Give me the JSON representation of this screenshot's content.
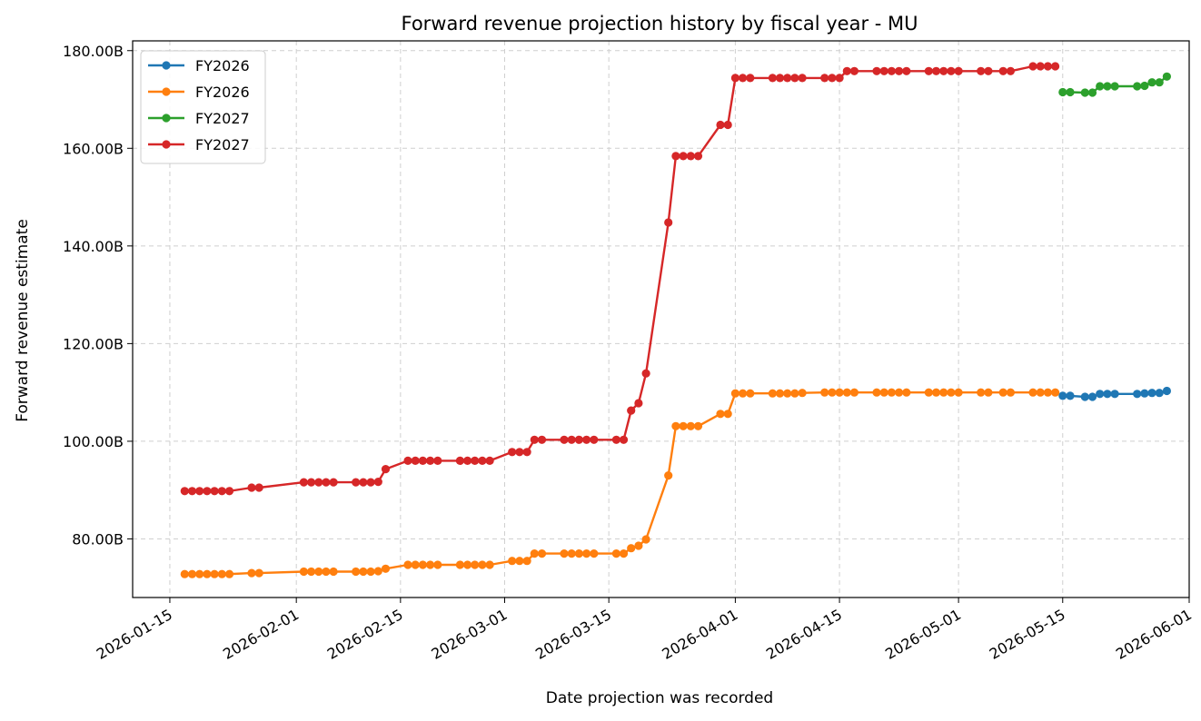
{
  "chart_data": {
    "type": "line",
    "title": "Forward revenue projection history by fiscal year - MU",
    "xlabel": "Date projection was recorded",
    "ylabel": "Forward revenue estimate",
    "xlim": [
      "2026-01-10",
      "2026-06-01"
    ],
    "ylim": [
      68.0,
      182.0
    ],
    "grid": true,
    "legend": "top-left",
    "x_ticks": [
      "2026-01-15",
      "2026-02-01",
      "2026-02-15",
      "2026-03-01",
      "2026-03-15",
      "2026-04-01",
      "2026-04-15",
      "2026-05-01",
      "2026-05-15",
      "2026-06-01"
    ],
    "y_ticks": [
      80,
      100,
      120,
      140,
      160,
      180
    ],
    "y_tick_labels": [
      "80.00B",
      "100.00B",
      "120.00B",
      "140.00B",
      "160.00B",
      "180.00B"
    ],
    "series": [
      {
        "name": "FY2026",
        "color": "#1f77b4",
        "x": [
          "2026-05-15",
          "2026-05-16",
          "2026-05-18",
          "2026-05-19",
          "2026-05-20",
          "2026-05-21",
          "2026-05-22",
          "2026-05-25",
          "2026-05-26",
          "2026-05-27",
          "2026-05-28",
          "2026-05-29"
        ],
        "y": [
          109.3,
          109.3,
          109.1,
          109.1,
          109.7,
          109.7,
          109.7,
          109.7,
          109.8,
          109.9,
          109.9,
          110.3
        ]
      },
      {
        "name": "FY2026",
        "color": "#ff7f0e",
        "x": [
          "2026-01-17",
          "2026-01-18",
          "2026-01-19",
          "2026-01-20",
          "2026-01-21",
          "2026-01-22",
          "2026-01-23",
          "2026-01-26",
          "2026-01-27",
          "2026-02-02",
          "2026-02-03",
          "2026-02-04",
          "2026-02-05",
          "2026-02-06",
          "2026-02-09",
          "2026-02-10",
          "2026-02-11",
          "2026-02-12",
          "2026-02-13",
          "2026-02-16",
          "2026-02-17",
          "2026-02-18",
          "2026-02-19",
          "2026-02-20",
          "2026-02-23",
          "2026-02-24",
          "2026-02-25",
          "2026-02-26",
          "2026-02-27",
          "2026-03-02",
          "2026-03-03",
          "2026-03-04",
          "2026-03-05",
          "2026-03-06",
          "2026-03-09",
          "2026-03-10",
          "2026-03-11",
          "2026-03-12",
          "2026-03-13",
          "2026-03-16",
          "2026-03-17",
          "2026-03-18",
          "2026-03-19",
          "2026-03-20",
          "2026-03-23",
          "2026-03-24",
          "2026-03-25",
          "2026-03-26",
          "2026-03-27",
          "2026-03-30",
          "2026-03-31",
          "2026-04-01",
          "2026-04-02",
          "2026-04-03",
          "2026-04-06",
          "2026-04-07",
          "2026-04-08",
          "2026-04-09",
          "2026-04-10",
          "2026-04-13",
          "2026-04-14",
          "2026-04-15",
          "2026-04-16",
          "2026-04-17",
          "2026-04-20",
          "2026-04-21",
          "2026-04-22",
          "2026-04-23",
          "2026-04-24",
          "2026-04-27",
          "2026-04-28",
          "2026-04-29",
          "2026-04-30",
          "2026-05-01",
          "2026-05-04",
          "2026-05-05",
          "2026-05-07",
          "2026-05-08",
          "2026-05-11",
          "2026-05-12",
          "2026-05-13",
          "2026-05-14"
        ],
        "y": [
          72.8,
          72.8,
          72.8,
          72.8,
          72.8,
          72.8,
          72.8,
          73.0,
          73.0,
          73.3,
          73.3,
          73.3,
          73.3,
          73.3,
          73.3,
          73.3,
          73.3,
          73.4,
          73.9,
          74.7,
          74.7,
          74.7,
          74.7,
          74.7,
          74.7,
          74.7,
          74.7,
          74.7,
          74.7,
          75.5,
          75.5,
          75.5,
          77.0,
          77.0,
          77.0,
          77.0,
          77.0,
          77.0,
          77.0,
          77.0,
          77.0,
          78.1,
          78.6,
          79.9,
          93.0,
          103.1,
          103.1,
          103.1,
          103.1,
          105.6,
          105.6,
          109.8,
          109.8,
          109.8,
          109.8,
          109.8,
          109.8,
          109.8,
          109.9,
          110.0,
          110.0,
          110.0,
          110.0,
          110.0,
          110.0,
          110.0,
          110.0,
          110.0,
          110.0,
          110.0,
          110.0,
          110.0,
          110.0,
          110.0,
          110.0,
          110.0,
          110.0,
          110.0,
          110.0,
          110.0,
          110.0,
          110.0
        ]
      },
      {
        "name": "FY2027",
        "color": "#2ca02c",
        "x": [
          "2026-05-15",
          "2026-05-16",
          "2026-05-18",
          "2026-05-19",
          "2026-05-20",
          "2026-05-21",
          "2026-05-22",
          "2026-05-25",
          "2026-05-26",
          "2026-05-27",
          "2026-05-28",
          "2026-05-29"
        ],
        "y": [
          171.5,
          171.5,
          171.4,
          171.4,
          172.7,
          172.7,
          172.7,
          172.7,
          172.8,
          173.5,
          173.5,
          174.7
        ]
      },
      {
        "name": "FY2027",
        "color": "#d62728",
        "x": [
          "2026-01-17",
          "2026-01-18",
          "2026-01-19",
          "2026-01-20",
          "2026-01-21",
          "2026-01-22",
          "2026-01-23",
          "2026-01-26",
          "2026-01-27",
          "2026-02-02",
          "2026-02-03",
          "2026-02-04",
          "2026-02-05",
          "2026-02-06",
          "2026-02-09",
          "2026-02-10",
          "2026-02-11",
          "2026-02-12",
          "2026-02-13",
          "2026-02-16",
          "2026-02-17",
          "2026-02-18",
          "2026-02-19",
          "2026-02-20",
          "2026-02-23",
          "2026-02-24",
          "2026-02-25",
          "2026-02-26",
          "2026-02-27",
          "2026-03-02",
          "2026-03-03",
          "2026-03-04",
          "2026-03-05",
          "2026-03-06",
          "2026-03-09",
          "2026-03-10",
          "2026-03-11",
          "2026-03-12",
          "2026-03-13",
          "2026-03-16",
          "2026-03-17",
          "2026-03-18",
          "2026-03-19",
          "2026-03-20",
          "2026-03-23",
          "2026-03-24",
          "2026-03-25",
          "2026-03-26",
          "2026-03-27",
          "2026-03-30",
          "2026-03-31",
          "2026-04-01",
          "2026-04-02",
          "2026-04-03",
          "2026-04-06",
          "2026-04-07",
          "2026-04-08",
          "2026-04-09",
          "2026-04-10",
          "2026-04-13",
          "2026-04-14",
          "2026-04-15",
          "2026-04-16",
          "2026-04-17",
          "2026-04-20",
          "2026-04-21",
          "2026-04-22",
          "2026-04-23",
          "2026-04-24",
          "2026-04-27",
          "2026-04-28",
          "2026-04-29",
          "2026-04-30",
          "2026-05-01",
          "2026-05-04",
          "2026-05-05",
          "2026-05-07",
          "2026-05-08",
          "2026-05-11",
          "2026-05-12",
          "2026-05-13",
          "2026-05-14"
        ],
        "y": [
          89.8,
          89.8,
          89.8,
          89.8,
          89.8,
          89.8,
          89.8,
          90.5,
          90.5,
          91.6,
          91.6,
          91.6,
          91.6,
          91.6,
          91.6,
          91.6,
          91.6,
          91.7,
          94.3,
          96.0,
          96.0,
          96.0,
          96.0,
          96.0,
          96.0,
          96.0,
          96.0,
          96.0,
          96.0,
          97.8,
          97.8,
          97.8,
          100.3,
          100.3,
          100.3,
          100.3,
          100.3,
          100.3,
          100.3,
          100.3,
          100.3,
          106.3,
          107.8,
          113.9,
          144.8,
          158.4,
          158.4,
          158.4,
          158.4,
          164.8,
          164.8,
          174.4,
          174.4,
          174.4,
          174.4,
          174.4,
          174.4,
          174.4,
          174.4,
          174.4,
          174.4,
          174.4,
          175.8,
          175.8,
          175.8,
          175.8,
          175.8,
          175.8,
          175.8,
          175.8,
          175.8,
          175.8,
          175.8,
          175.8,
          175.8,
          175.8,
          175.8,
          175.8,
          176.8,
          176.8,
          176.8,
          176.8
        ]
      }
    ]
  }
}
